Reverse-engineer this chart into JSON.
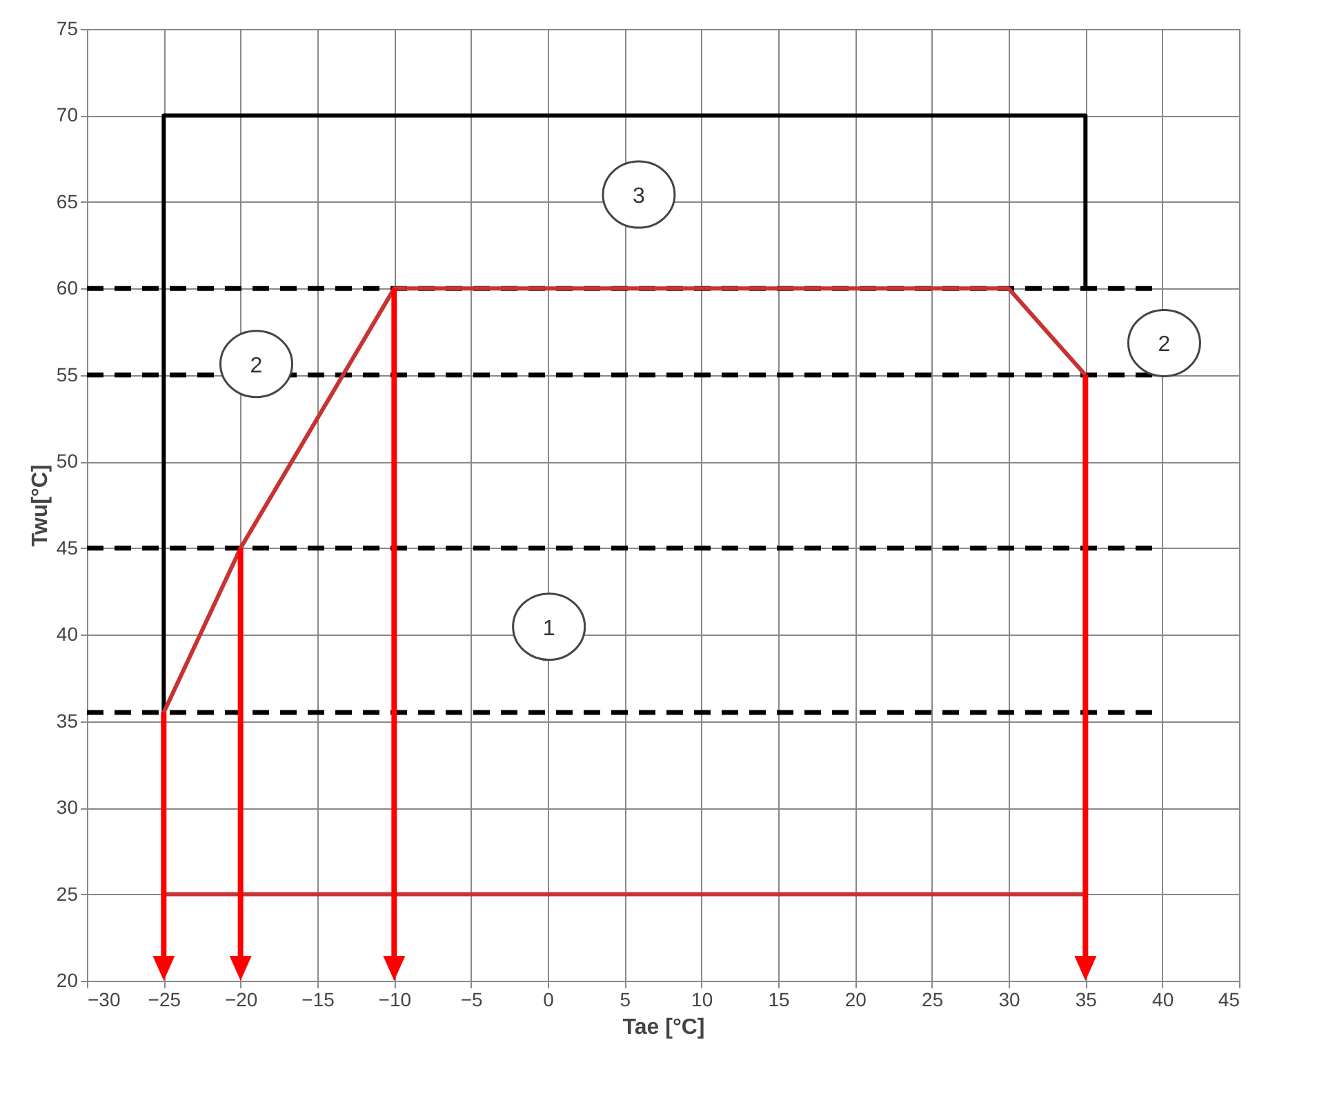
{
  "chart_data": {
    "type": "line",
    "xlabel": "Tae [°C]",
    "ylabel": "Twu[°C]",
    "xlim": [
      -30,
      45
    ],
    "xticks": [
      -30,
      -25,
      -20,
      -15,
      -10,
      -5,
      0,
      5,
      10,
      15,
      20,
      25,
      30,
      35,
      40,
      45
    ],
    "ylim": [
      20,
      75
    ],
    "yticks": [
      20,
      25,
      30,
      35,
      40,
      45,
      50,
      55,
      60,
      65,
      70,
      75
    ],
    "grid": true,
    "line_style": "solid",
    "series": [
      {
        "color": "#000000",
        "line_style": "dashed",
        "x": [
          -30,
          40
        ],
        "values": [
          60,
          60
        ]
      },
      {
        "color": "#000000",
        "line_style": "dashed",
        "x": [
          -30,
          40
        ],
        "values": [
          55,
          55
        ]
      },
      {
        "color": "#000000",
        "line_style": "dashed",
        "x": [
          -30,
          40
        ],
        "values": [
          45,
          45
        ]
      },
      {
        "color": "#000000",
        "line_style": "dashed",
        "x": [
          -30,
          40
        ],
        "values": [
          35.5,
          35.5
        ]
      },
      {
        "color": "#000000",
        "x": [
          -25,
          -25,
          35,
          35
        ],
        "values": [
          35.5,
          70,
          70,
          60
        ]
      },
      {
        "color": "#c83232",
        "x": [
          -25,
          -20,
          -10,
          30,
          35
        ],
        "values": [
          35.5,
          45,
          60,
          60,
          55
        ]
      },
      {
        "color": "#c83232",
        "x": [
          -25,
          35
        ],
        "values": [
          25,
          25
        ]
      }
    ],
    "annotations": [
      "3",
      "2",
      "2",
      "1"
    ]
  }
}
